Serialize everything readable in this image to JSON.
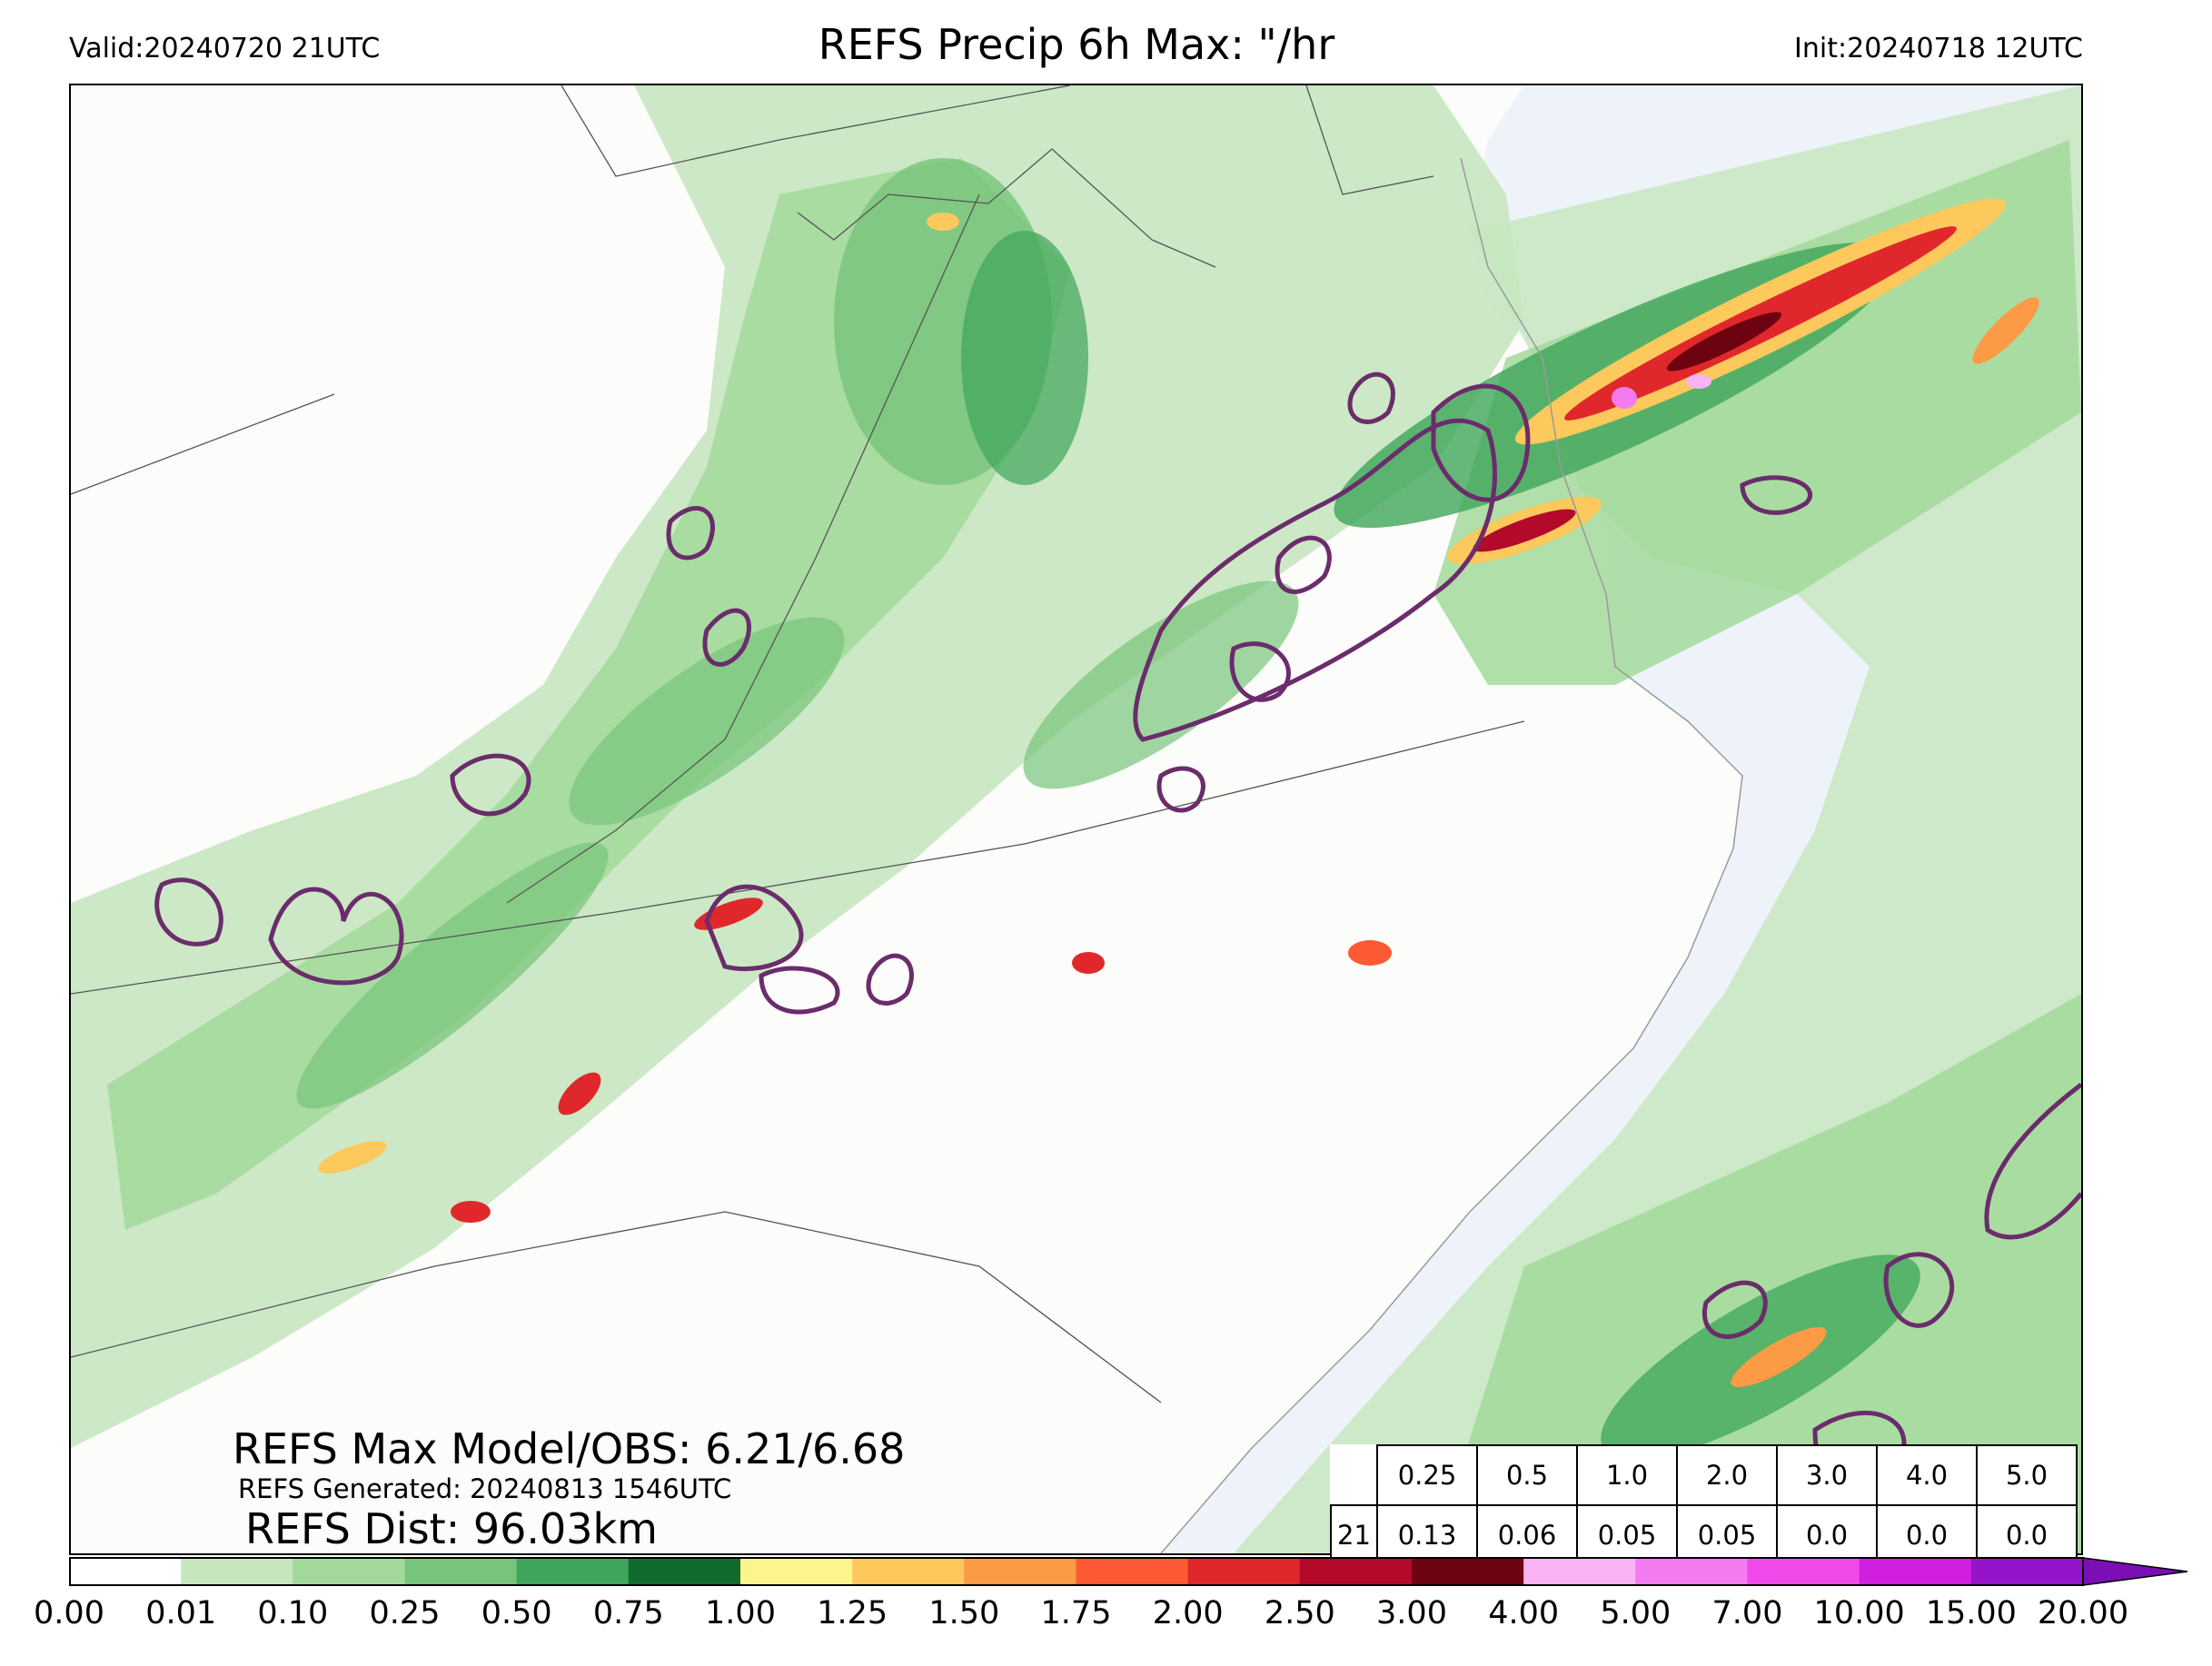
{
  "header": {
    "valid": "Valid:20240720 21UTC",
    "title": "REFS Precip 6h Max: \"/hr",
    "init": "Init:20240718 12UTC"
  },
  "stats": {
    "max_line": "REFS Max Model/OBS: 6.21/6.68",
    "generated_line": "REFS Generated: 20240813 1546UTC",
    "dist_line": "REFS Dist: 96.03km"
  },
  "table": {
    "thresholds": [
      "0.25",
      "0.5",
      "1.0",
      "2.0",
      "3.0",
      "4.0",
      "5.0"
    ],
    "row_label": "21",
    "values": [
      "0.13",
      "0.06",
      "0.05",
      "0.05",
      "0.0",
      "0.0",
      "0.0"
    ]
  },
  "colorbar": {
    "ticks": [
      "0.00",
      "0.01",
      "0.10",
      "0.25",
      "0.50",
      "0.75",
      "1.00",
      "1.25",
      "1.50",
      "1.75",
      "2.00",
      "2.50",
      "3.00",
      "4.00",
      "5.00",
      "7.00",
      "10.00",
      "15.00",
      "20.00"
    ],
    "colors": [
      "#ffffff",
      "#c7e6c0",
      "#a2d99a",
      "#77c47a",
      "#3ea55a",
      "#116b2e",
      "#fbf58c",
      "#fdc85c",
      "#fd9a45",
      "#fb5a35",
      "#e0282c",
      "#b3092b",
      "#6d0310",
      "#f8b3f4",
      "#f47bef",
      "#ef4ae9",
      "#d11fe0",
      "#9514c9"
    ],
    "extend_color": "#7b0eb5"
  },
  "map": {
    "ocean_color": "#eef3fa",
    "land_color": "#fcfcfb",
    "contour_color": "#6b2c6b",
    "boundary_color": "#555555"
  }
}
